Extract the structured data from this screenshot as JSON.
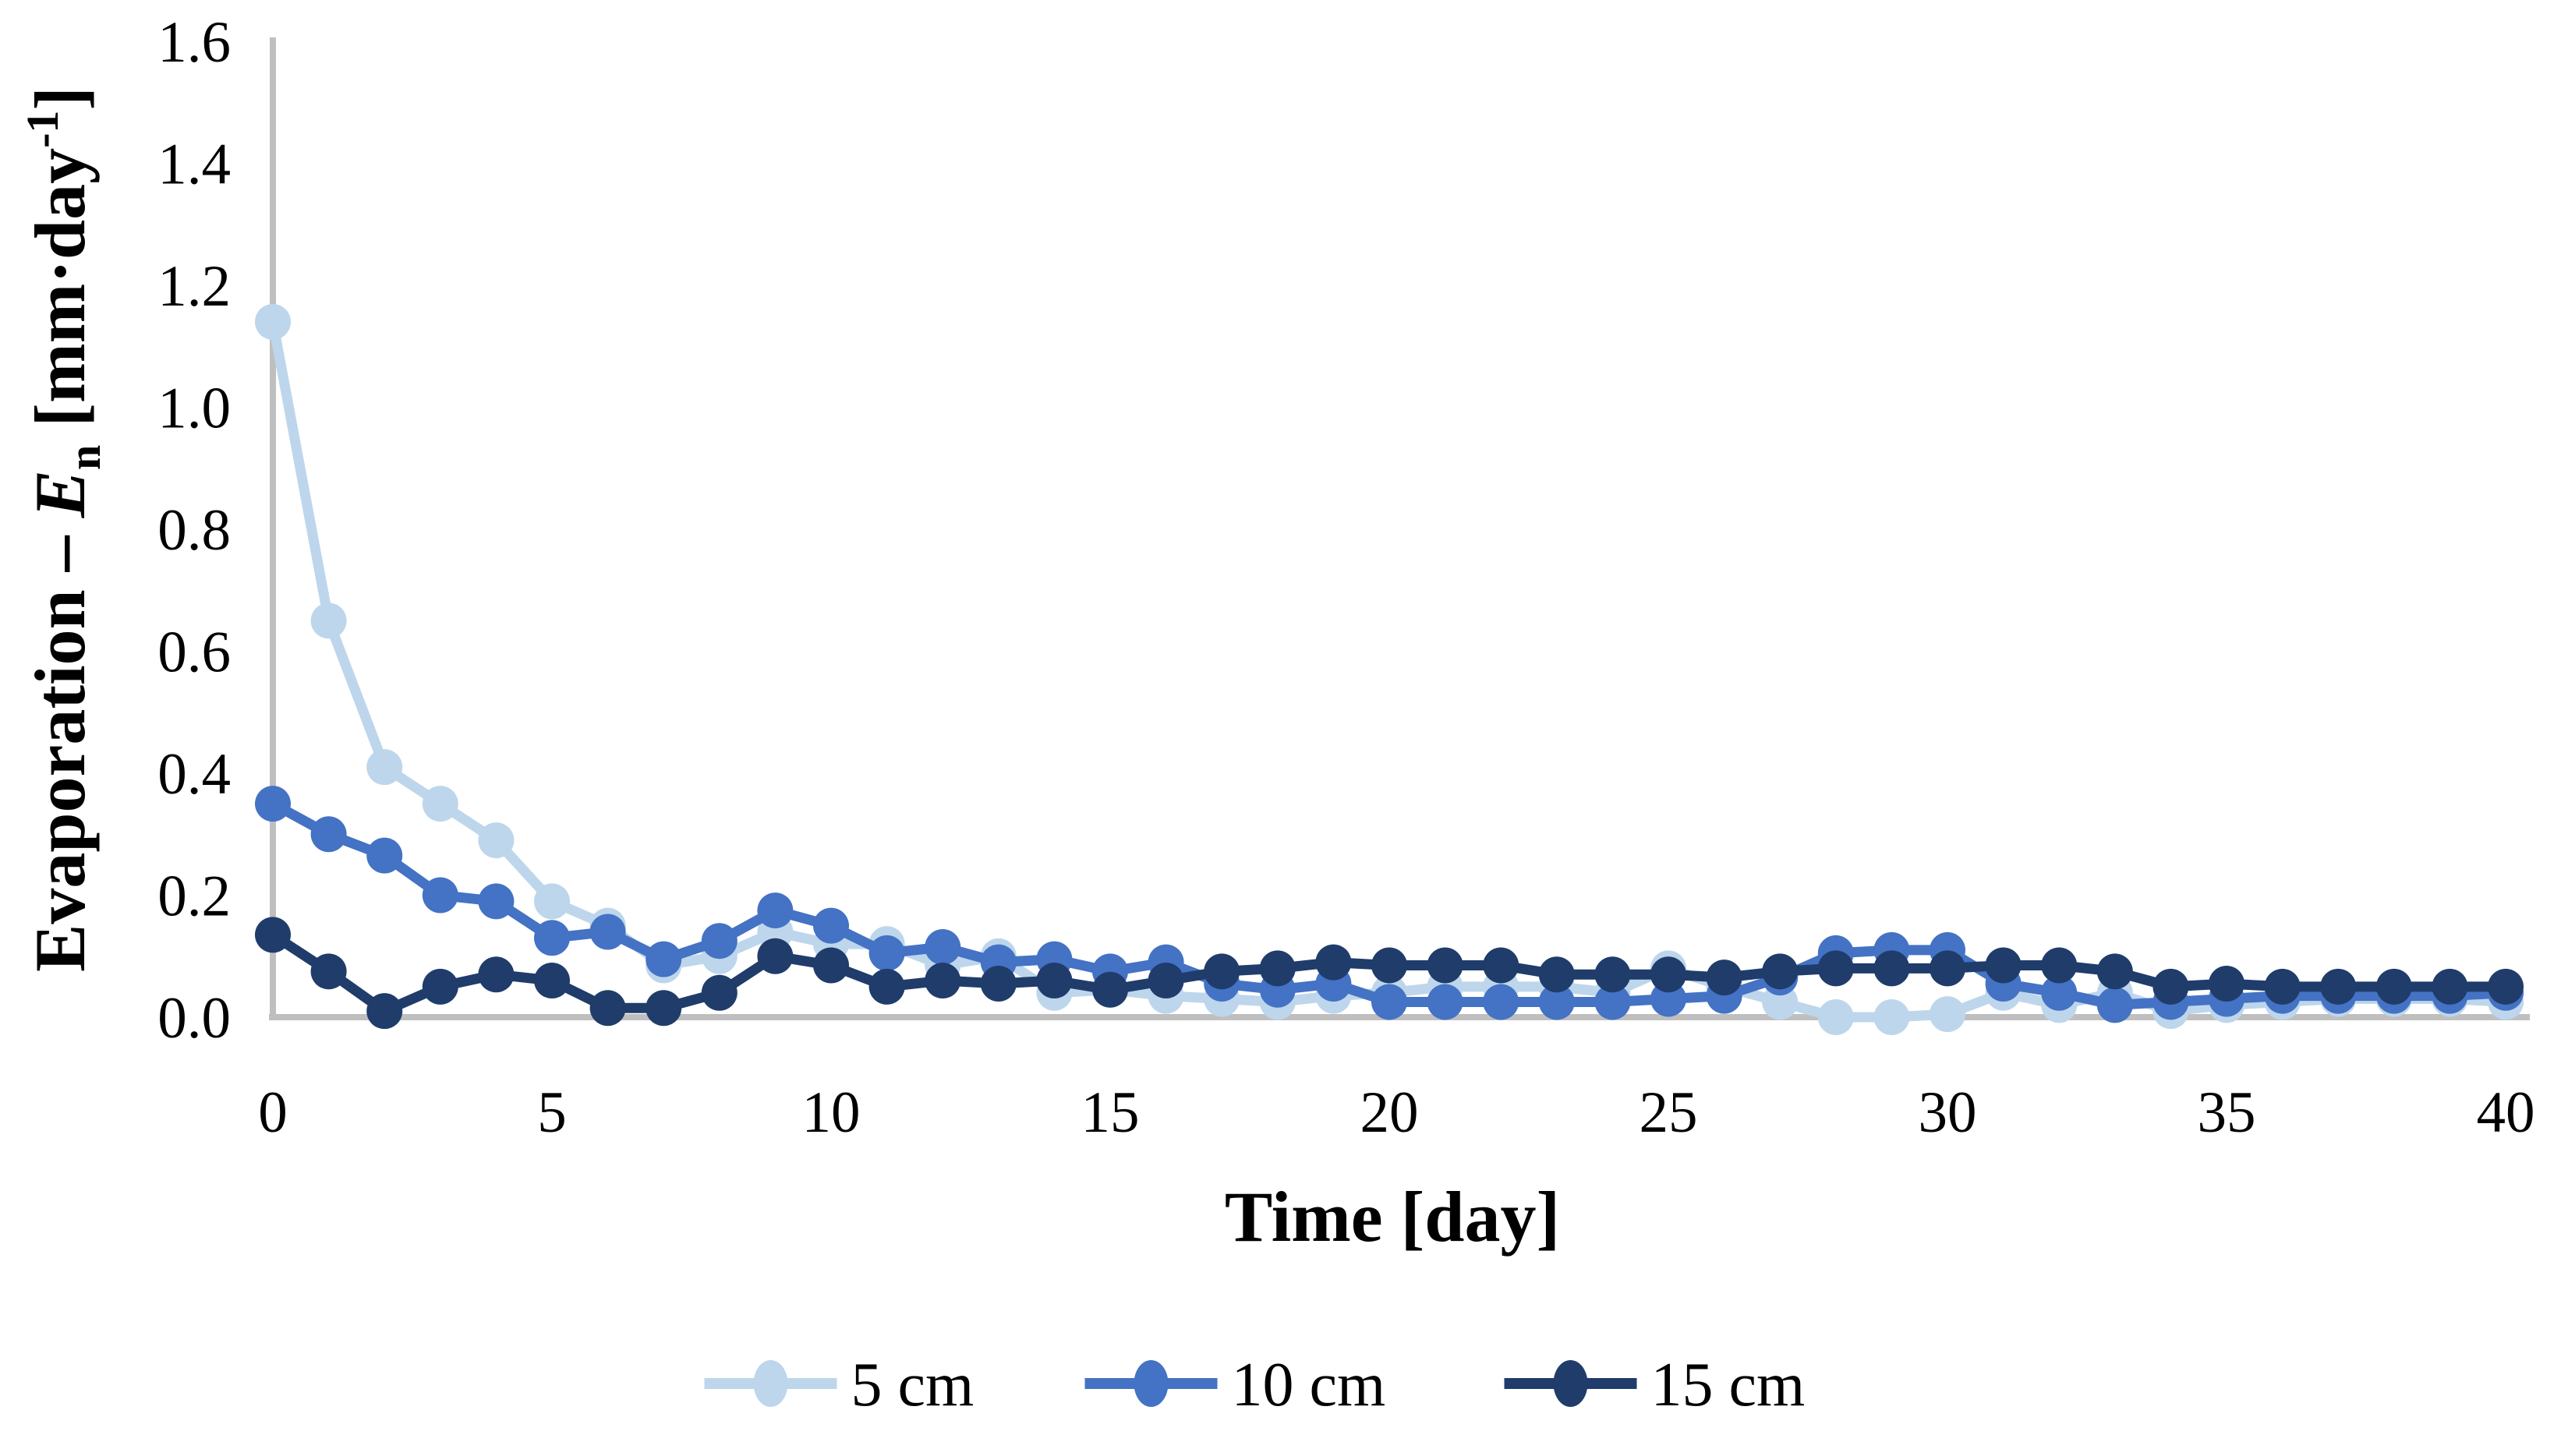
{
  "chart_data": {
    "type": "line",
    "title": "",
    "xlabel": "Time [day]",
    "ylabel": {
      "prefix": "Evaporation – ",
      "symbol": "E",
      "subscript": "n",
      "unit_prefix": " [mm·day",
      "superscript": "-1",
      "unit_suffix": "]"
    },
    "xlim": [
      0,
      40
    ],
    "ylim": [
      0,
      1.6
    ],
    "xticks": [
      0,
      5,
      10,
      15,
      20,
      25,
      30,
      35,
      40
    ],
    "yticks": [
      "0.0",
      "0.2",
      "0.4",
      "0.6",
      "0.8",
      "1.0",
      "1.2",
      "1.4",
      "1.6"
    ],
    "grid": false,
    "legend_position": "bottom-center",
    "axis_color": "#bfbfbf",
    "background": "#ffffff",
    "x": [
      0,
      1,
      2,
      3,
      4,
      5,
      6,
      7,
      8,
      9,
      10,
      11,
      12,
      13,
      14,
      15,
      16,
      17,
      18,
      19,
      20,
      21,
      22,
      23,
      24,
      25,
      26,
      27,
      28,
      29,
      30,
      31,
      32,
      33,
      34,
      35,
      36,
      37,
      38,
      39,
      40
    ],
    "series": [
      {
        "name": "5 cm",
        "color": "#bdd6ec",
        "values": [
          1.14,
          0.65,
          0.41,
          0.35,
          0.29,
          0.19,
          0.15,
          0.085,
          0.1,
          0.14,
          0.12,
          0.12,
          0.085,
          0.1,
          0.04,
          0.045,
          0.035,
          0.03,
          0.025,
          0.035,
          0.04,
          0.05,
          0.05,
          0.05,
          0.04,
          0.08,
          0.05,
          0.025,
          0.0,
          0.0,
          0.005,
          0.04,
          0.02,
          0.04,
          0.01,
          0.02,
          0.025,
          0.03,
          0.03,
          0.03,
          0.025
        ]
      },
      {
        "name": "10 cm",
        "color": "#4472c4",
        "values": [
          0.35,
          0.3,
          0.265,
          0.2,
          0.19,
          0.13,
          0.14,
          0.095,
          0.125,
          0.175,
          0.15,
          0.105,
          0.115,
          0.09,
          0.095,
          0.075,
          0.09,
          0.055,
          0.045,
          0.055,
          0.025,
          0.025,
          0.025,
          0.025,
          0.025,
          0.03,
          0.035,
          0.065,
          0.105,
          0.11,
          0.11,
          0.055,
          0.04,
          0.02,
          0.025,
          0.03,
          0.035,
          0.035,
          0.035,
          0.035,
          0.04
        ]
      },
      {
        "name": "15 cm",
        "color": "#1f3c6b",
        "values": [
          0.135,
          0.075,
          0.01,
          0.05,
          0.07,
          0.06,
          0.015,
          0.015,
          0.04,
          0.1,
          0.085,
          0.05,
          0.06,
          0.055,
          0.06,
          0.045,
          0.06,
          0.075,
          0.08,
          0.09,
          0.085,
          0.085,
          0.085,
          0.07,
          0.07,
          0.07,
          0.065,
          0.075,
          0.08,
          0.08,
          0.08,
          0.085,
          0.085,
          0.075,
          0.05,
          0.055,
          0.05,
          0.05,
          0.05,
          0.05,
          0.05
        ]
      }
    ]
  }
}
